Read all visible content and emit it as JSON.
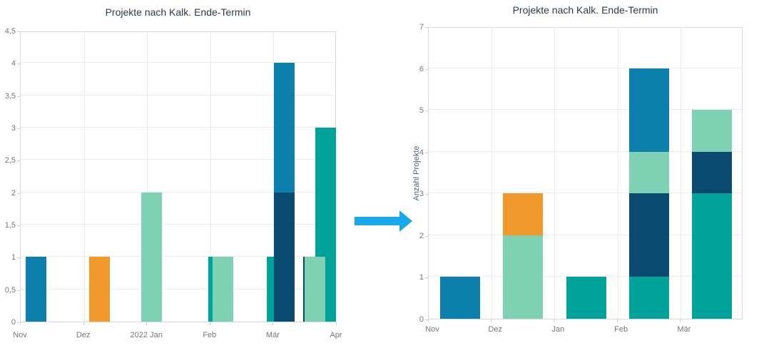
{
  "colors": {
    "blue": "#0d7fad",
    "orange": "#f0992b",
    "mint": "#7fd1b4",
    "teal": "#00a29a",
    "navy": "#0a4a70",
    "arrow": "#19a8ea",
    "title_text": "#293a4d",
    "tick_text": "#777777",
    "gridline": "#ebebeb",
    "plot_border": "#d8d8d8"
  },
  "arrow": {
    "icon": "right-block-arrow"
  },
  "chart_data": [
    {
      "id": "left-chart",
      "type": "bar",
      "variant": "overlapping-date-axis",
      "title": "Projekte nach Kalk. Ende-Termin",
      "x_tick_labels": [
        "Nov",
        "Dez",
        "2022 Jan",
        "Feb",
        "Mär",
        "Apr"
      ],
      "y_tick_labels": [
        "4,5",
        "4",
        "3,5",
        "3",
        "2,5",
        "2",
        "1,5",
        "1",
        "0,5",
        "0"
      ],
      "ylim": [
        0,
        4.5
      ],
      "y_step": 0.5,
      "grid": true,
      "bars": [
        {
          "x_month": 0.079,
          "value": 1,
          "color": "blue"
        },
        {
          "x_month": 1.084,
          "value": 1,
          "color": "orange"
        },
        {
          "x_month": 1.907,
          "value": 2,
          "color": "mint"
        },
        {
          "x_month": 2.968,
          "value": 1,
          "color": "teal"
        },
        {
          "x_month": 3.036,
          "value": 1,
          "color": "mint"
        },
        {
          "x_month": 3.894,
          "value": 1,
          "color": "teal"
        },
        {
          "x_month": 4.006,
          "value": 4,
          "color": "blue"
        },
        {
          "x_month": 4.006,
          "value": 2,
          "color": "navy"
        },
        {
          "x_month": 4.661,
          "value": 3,
          "color": "teal"
        },
        {
          "x_month": 4.469,
          "value": 1,
          "color": "navy"
        },
        {
          "x_month": 4.492,
          "value": 1,
          "color": "mint"
        }
      ]
    },
    {
      "id": "right-chart",
      "type": "bar",
      "variant": "stacked",
      "title": "Projekte nach Kalk. Ende-Termin",
      "ylabel": "Anzahl Projekte",
      "x_tick_labels": [
        "Nov",
        "Dez",
        "Jan",
        "Feb",
        "Mär"
      ],
      "y_tick_labels": [
        "7",
        "6",
        "5",
        "4",
        "3",
        "2",
        "1",
        "0"
      ],
      "ylim": [
        0,
        7
      ],
      "y_step": 1,
      "grid": true,
      "stacks": [
        {
          "category": "Nov",
          "total": 1,
          "segments": [
            {
              "value": 1,
              "color": "blue"
            }
          ]
        },
        {
          "category": "Dez",
          "total": 3,
          "segments": [
            {
              "value": 2,
              "color": "mint"
            },
            {
              "value": 1,
              "color": "orange"
            }
          ]
        },
        {
          "category": "Jan",
          "total": 1,
          "segments": [
            {
              "value": 1,
              "color": "teal"
            }
          ]
        },
        {
          "category": "Feb",
          "total": 6,
          "segments": [
            {
              "value": 1,
              "color": "teal"
            },
            {
              "value": 2,
              "color": "navy"
            },
            {
              "value": 1,
              "color": "mint"
            },
            {
              "value": 2,
              "color": "blue"
            }
          ]
        },
        {
          "category": "Mär",
          "total": 5,
          "segments": [
            {
              "value": 3,
              "color": "teal"
            },
            {
              "value": 1,
              "color": "navy"
            },
            {
              "value": 1,
              "color": "mint"
            }
          ]
        }
      ]
    }
  ]
}
